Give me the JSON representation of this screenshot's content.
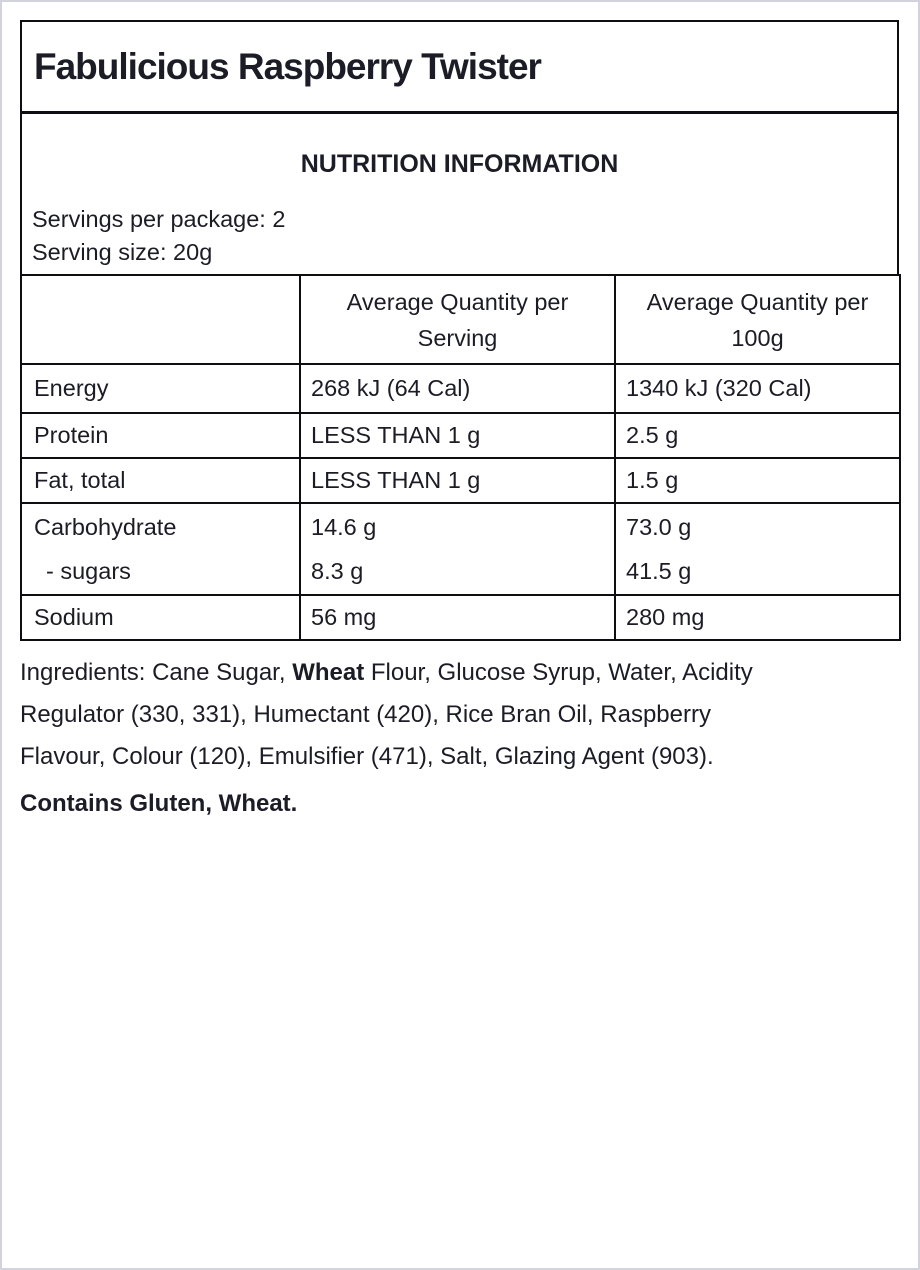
{
  "page": {
    "background_color": "#ffffff",
    "outer_border_color": "#d3d3de",
    "panel_border_color": "#0d0d12",
    "text_color": "#1c1c26"
  },
  "title": "Fabulicious Raspberry Twister",
  "nutrition_panel": {
    "heading": "NUTRITION INFORMATION",
    "servings_per_package": "Servings per package: 2",
    "serving_size": "Serving size: 20g"
  },
  "table": {
    "columns": [
      "",
      "Average Quantity per Serving",
      "Average Quantity per 100g"
    ],
    "rows": [
      {
        "label": "Energy",
        "per_serving": "268 kJ (64 Cal)",
        "per_100g": "1340 kJ (320 Cal)"
      },
      {
        "label": "Protein",
        "per_serving": "LESS THAN 1 g",
        "per_100g": "2.5 g"
      },
      {
        "label": "Fat, total",
        "per_serving": "LESS THAN 1 g",
        "per_100g": "1.5 g"
      },
      {
        "label": "Carbohydrate",
        "per_serving": "14.6 g",
        "per_100g": "73.0 g",
        "sub": {
          "label": "- sugars",
          "per_serving": "8.3 g",
          "per_100g": "41.5 g"
        }
      },
      {
        "label": "Sodium",
        "per_serving": "56 mg",
        "per_100g": "280 mg"
      }
    ]
  },
  "ingredients": {
    "lines": [
      [
        {
          "t": "Ingredients: Cane Sugar, "
        },
        {
          "t": "Wheat",
          "b": true
        },
        {
          "t": " Flour, Glucose Syrup, Water, Acidity"
        }
      ],
      [
        {
          "t": "Regulator (330, 331), Humectant (420), Rice Bran Oil, Raspberry"
        }
      ],
      [
        {
          "t": "Flavour, Colour (120), Emulsifier (471), Salt, Glazing Agent (903)."
        }
      ]
    ],
    "contains": "Contains Gluten, Wheat."
  }
}
